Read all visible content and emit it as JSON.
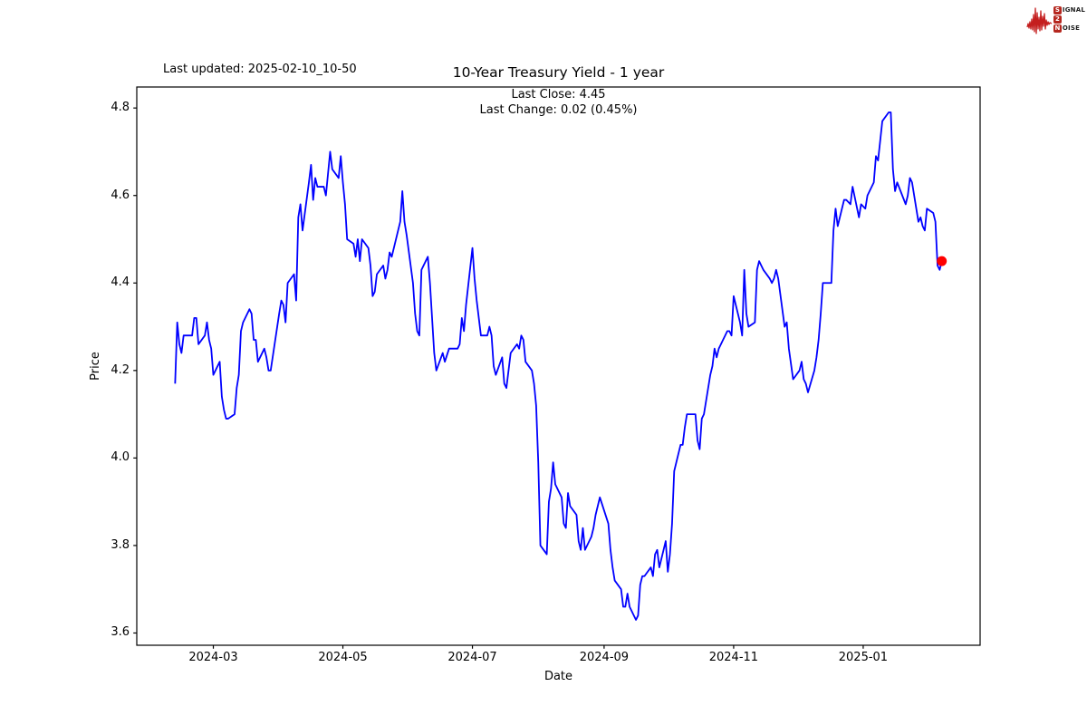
{
  "annotations": {
    "last_updated": "Last updated: 2025-02-10_10-50",
    "title": "10-Year Treasury Yield - 1 year",
    "last_close_line": "Last Close: 4.45",
    "last_change_line": "Last Change: 0.02 (0.45%)"
  },
  "logo": {
    "name": "Signal 2 Noise",
    "word1_initial": "S",
    "word1_rest": "IGNAL",
    "word2": "2",
    "word3_initial": "N",
    "word3_rest": "OISE",
    "box_color": "#b5271f",
    "wave_color": "#c41e1e"
  },
  "axes": {
    "x_label": "Date",
    "y_label": "Price",
    "x_ticks": [
      {
        "label": "2024-03",
        "date": "2024-03-01"
      },
      {
        "label": "2024-05",
        "date": "2024-05-01"
      },
      {
        "label": "2024-07",
        "date": "2024-07-01"
      },
      {
        "label": "2024-09",
        "date": "2024-09-01"
      },
      {
        "label": "2024-11",
        "date": "2024-11-01"
      },
      {
        "label": "2025-01",
        "date": "2025-01-01"
      }
    ],
    "y_ticks": [
      3.6,
      3.8,
      4.0,
      4.2,
      4.4,
      4.6,
      4.8
    ]
  },
  "chart_data": {
    "type": "line",
    "title": "10-Year Treasury Yield - 1 year",
    "xlabel": "Date",
    "ylabel": "Price",
    "legend": "none",
    "grid": false,
    "line_color": "#0000ff",
    "line_width": 1.8,
    "marker_color": "#ff0000",
    "last_close": 4.45,
    "last_change": "0.02 (0.45%)",
    "ylim": [
      3.57,
      4.85
    ],
    "xlim": [
      "2024-01-25",
      "2025-02-25"
    ],
    "points": [
      [
        "2024-02-12",
        4.17
      ],
      [
        "2024-02-13",
        4.31
      ],
      [
        "2024-02-14",
        4.26
      ],
      [
        "2024-02-15",
        4.24
      ],
      [
        "2024-02-16",
        4.28
      ],
      [
        "2024-02-20",
        4.28
      ],
      [
        "2024-02-21",
        4.32
      ],
      [
        "2024-02-22",
        4.32
      ],
      [
        "2024-02-23",
        4.26
      ],
      [
        "2024-02-26",
        4.28
      ],
      [
        "2024-02-27",
        4.31
      ],
      [
        "2024-02-28",
        4.27
      ],
      [
        "2024-02-29",
        4.25
      ],
      [
        "2024-03-01",
        4.19
      ],
      [
        "2024-03-04",
        4.22
      ],
      [
        "2024-03-05",
        4.14
      ],
      [
        "2024-03-06",
        4.11
      ],
      [
        "2024-03-07",
        4.09
      ],
      [
        "2024-03-08",
        4.09
      ],
      [
        "2024-03-11",
        4.1
      ],
      [
        "2024-03-12",
        4.16
      ],
      [
        "2024-03-13",
        4.19
      ],
      [
        "2024-03-14",
        4.29
      ],
      [
        "2024-03-15",
        4.31
      ],
      [
        "2024-03-18",
        4.34
      ],
      [
        "2024-03-19",
        4.33
      ],
      [
        "2024-03-20",
        4.27
      ],
      [
        "2024-03-21",
        4.27
      ],
      [
        "2024-03-22",
        4.22
      ],
      [
        "2024-03-25",
        4.25
      ],
      [
        "2024-03-26",
        4.23
      ],
      [
        "2024-03-27",
        4.2
      ],
      [
        "2024-03-28",
        4.2
      ],
      [
        "2024-04-01",
        4.33
      ],
      [
        "2024-04-02",
        4.36
      ],
      [
        "2024-04-03",
        4.35
      ],
      [
        "2024-04-04",
        4.31
      ],
      [
        "2024-04-05",
        4.4
      ],
      [
        "2024-04-08",
        4.42
      ],
      [
        "2024-04-09",
        4.36
      ],
      [
        "2024-04-10",
        4.55
      ],
      [
        "2024-04-11",
        4.58
      ],
      [
        "2024-04-12",
        4.52
      ],
      [
        "2024-04-15",
        4.63
      ],
      [
        "2024-04-16",
        4.67
      ],
      [
        "2024-04-17",
        4.59
      ],
      [
        "2024-04-18",
        4.64
      ],
      [
        "2024-04-19",
        4.62
      ],
      [
        "2024-04-22",
        4.62
      ],
      [
        "2024-04-23",
        4.6
      ],
      [
        "2024-04-24",
        4.65
      ],
      [
        "2024-04-25",
        4.7
      ],
      [
        "2024-04-26",
        4.66
      ],
      [
        "2024-04-29",
        4.64
      ],
      [
        "2024-04-30",
        4.69
      ],
      [
        "2024-05-01",
        4.63
      ],
      [
        "2024-05-02",
        4.58
      ],
      [
        "2024-05-03",
        4.5
      ],
      [
        "2024-05-06",
        4.49
      ],
      [
        "2024-05-07",
        4.46
      ],
      [
        "2024-05-08",
        4.5
      ],
      [
        "2024-05-09",
        4.45
      ],
      [
        "2024-05-10",
        4.5
      ],
      [
        "2024-05-13",
        4.48
      ],
      [
        "2024-05-14",
        4.44
      ],
      [
        "2024-05-15",
        4.37
      ],
      [
        "2024-05-16",
        4.38
      ],
      [
        "2024-05-17",
        4.42
      ],
      [
        "2024-05-20",
        4.44
      ],
      [
        "2024-05-21",
        4.41
      ],
      [
        "2024-05-22",
        4.43
      ],
      [
        "2024-05-23",
        4.47
      ],
      [
        "2024-05-24",
        4.46
      ],
      [
        "2024-05-28",
        4.54
      ],
      [
        "2024-05-29",
        4.61
      ],
      [
        "2024-05-30",
        4.54
      ],
      [
        "2024-05-31",
        4.51
      ],
      [
        "2024-06-03",
        4.4
      ],
      [
        "2024-06-04",
        4.33
      ],
      [
        "2024-06-05",
        4.29
      ],
      [
        "2024-06-06",
        4.28
      ],
      [
        "2024-06-07",
        4.43
      ],
      [
        "2024-06-10",
        4.46
      ],
      [
        "2024-06-11",
        4.4
      ],
      [
        "2024-06-12",
        4.32
      ],
      [
        "2024-06-13",
        4.24
      ],
      [
        "2024-06-14",
        4.2
      ],
      [
        "2024-06-17",
        4.24
      ],
      [
        "2024-06-18",
        4.22
      ],
      [
        "2024-06-20",
        4.25
      ],
      [
        "2024-06-21",
        4.25
      ],
      [
        "2024-06-24",
        4.25
      ],
      [
        "2024-06-25",
        4.26
      ],
      [
        "2024-06-26",
        4.32
      ],
      [
        "2024-06-27",
        4.29
      ],
      [
        "2024-06-28",
        4.35
      ],
      [
        "2024-07-01",
        4.48
      ],
      [
        "2024-07-02",
        4.41
      ],
      [
        "2024-07-03",
        4.36
      ],
      [
        "2024-07-05",
        4.28
      ],
      [
        "2024-07-08",
        4.28
      ],
      [
        "2024-07-09",
        4.3
      ],
      [
        "2024-07-10",
        4.28
      ],
      [
        "2024-07-11",
        4.21
      ],
      [
        "2024-07-12",
        4.19
      ],
      [
        "2024-07-15",
        4.23
      ],
      [
        "2024-07-16",
        4.17
      ],
      [
        "2024-07-17",
        4.16
      ],
      [
        "2024-07-18",
        4.2
      ],
      [
        "2024-07-19",
        4.24
      ],
      [
        "2024-07-22",
        4.26
      ],
      [
        "2024-07-23",
        4.25
      ],
      [
        "2024-07-24",
        4.28
      ],
      [
        "2024-07-25",
        4.27
      ],
      [
        "2024-07-26",
        4.22
      ],
      [
        "2024-07-29",
        4.2
      ],
      [
        "2024-07-30",
        4.17
      ],
      [
        "2024-07-31",
        4.12
      ],
      [
        "2024-08-01",
        3.99
      ],
      [
        "2024-08-02",
        3.8
      ],
      [
        "2024-08-05",
        3.78
      ],
      [
        "2024-08-06",
        3.9
      ],
      [
        "2024-08-07",
        3.93
      ],
      [
        "2024-08-08",
        3.99
      ],
      [
        "2024-08-09",
        3.94
      ],
      [
        "2024-08-12",
        3.91
      ],
      [
        "2024-08-13",
        3.85
      ],
      [
        "2024-08-14",
        3.84
      ],
      [
        "2024-08-15",
        3.92
      ],
      [
        "2024-08-16",
        3.89
      ],
      [
        "2024-08-19",
        3.87
      ],
      [
        "2024-08-20",
        3.81
      ],
      [
        "2024-08-21",
        3.79
      ],
      [
        "2024-08-22",
        3.84
      ],
      [
        "2024-08-23",
        3.79
      ],
      [
        "2024-08-26",
        3.82
      ],
      [
        "2024-08-27",
        3.84
      ],
      [
        "2024-08-28",
        3.87
      ],
      [
        "2024-08-29",
        3.89
      ],
      [
        "2024-08-30",
        3.91
      ],
      [
        "2024-09-03",
        3.85
      ],
      [
        "2024-09-04",
        3.79
      ],
      [
        "2024-09-05",
        3.75
      ],
      [
        "2024-09-06",
        3.72
      ],
      [
        "2024-09-09",
        3.7
      ],
      [
        "2024-09-10",
        3.66
      ],
      [
        "2024-09-11",
        3.66
      ],
      [
        "2024-09-12",
        3.69
      ],
      [
        "2024-09-13",
        3.66
      ],
      [
        "2024-09-16",
        3.63
      ],
      [
        "2024-09-17",
        3.64
      ],
      [
        "2024-09-18",
        3.71
      ],
      [
        "2024-09-19",
        3.73
      ],
      [
        "2024-09-20",
        3.73
      ],
      [
        "2024-09-23",
        3.75
      ],
      [
        "2024-09-24",
        3.73
      ],
      [
        "2024-09-25",
        3.78
      ],
      [
        "2024-09-26",
        3.79
      ],
      [
        "2024-09-27",
        3.75
      ],
      [
        "2024-09-30",
        3.81
      ],
      [
        "2024-10-01",
        3.74
      ],
      [
        "2024-10-02",
        3.78
      ],
      [
        "2024-10-03",
        3.85
      ],
      [
        "2024-10-04",
        3.97
      ],
      [
        "2024-10-07",
        4.03
      ],
      [
        "2024-10-08",
        4.03
      ],
      [
        "2024-10-09",
        4.07
      ],
      [
        "2024-10-10",
        4.1
      ],
      [
        "2024-10-11",
        4.1
      ],
      [
        "2024-10-14",
        4.1
      ],
      [
        "2024-10-15",
        4.04
      ],
      [
        "2024-10-16",
        4.02
      ],
      [
        "2024-10-17",
        4.09
      ],
      [
        "2024-10-18",
        4.1
      ],
      [
        "2024-10-21",
        4.19
      ],
      [
        "2024-10-22",
        4.21
      ],
      [
        "2024-10-23",
        4.25
      ],
      [
        "2024-10-24",
        4.23
      ],
      [
        "2024-10-25",
        4.25
      ],
      [
        "2024-10-28",
        4.28
      ],
      [
        "2024-10-29",
        4.29
      ],
      [
        "2024-10-30",
        4.29
      ],
      [
        "2024-10-31",
        4.28
      ],
      [
        "2024-11-01",
        4.37
      ],
      [
        "2024-11-04",
        4.31
      ],
      [
        "2024-11-05",
        4.28
      ],
      [
        "2024-11-06",
        4.43
      ],
      [
        "2024-11-07",
        4.33
      ],
      [
        "2024-11-08",
        4.3
      ],
      [
        "2024-11-11",
        4.31
      ],
      [
        "2024-11-12",
        4.43
      ],
      [
        "2024-11-13",
        4.45
      ],
      [
        "2024-11-14",
        4.44
      ],
      [
        "2024-11-15",
        4.43
      ],
      [
        "2024-11-18",
        4.41
      ],
      [
        "2024-11-19",
        4.4
      ],
      [
        "2024-11-20",
        4.41
      ],
      [
        "2024-11-21",
        4.43
      ],
      [
        "2024-11-22",
        4.41
      ],
      [
        "2024-11-25",
        4.3
      ],
      [
        "2024-11-26",
        4.31
      ],
      [
        "2024-11-27",
        4.25
      ],
      [
        "2024-11-29",
        4.18
      ],
      [
        "2024-12-02",
        4.2
      ],
      [
        "2024-12-03",
        4.22
      ],
      [
        "2024-12-04",
        4.18
      ],
      [
        "2024-12-05",
        4.17
      ],
      [
        "2024-12-06",
        4.15
      ],
      [
        "2024-12-09",
        4.2
      ],
      [
        "2024-12-10",
        4.23
      ],
      [
        "2024-12-11",
        4.27
      ],
      [
        "2024-12-12",
        4.33
      ],
      [
        "2024-12-13",
        4.4
      ],
      [
        "2024-12-16",
        4.4
      ],
      [
        "2024-12-17",
        4.4
      ],
      [
        "2024-12-18",
        4.52
      ],
      [
        "2024-12-19",
        4.57
      ],
      [
        "2024-12-20",
        4.53
      ],
      [
        "2024-12-23",
        4.59
      ],
      [
        "2024-12-24",
        4.59
      ],
      [
        "2024-12-26",
        4.58
      ],
      [
        "2024-12-27",
        4.62
      ],
      [
        "2024-12-30",
        4.55
      ],
      [
        "2024-12-31",
        4.58
      ],
      [
        "2025-01-02",
        4.57
      ],
      [
        "2025-01-03",
        4.6
      ],
      [
        "2025-01-06",
        4.63
      ],
      [
        "2025-01-07",
        4.69
      ],
      [
        "2025-01-08",
        4.68
      ],
      [
        "2025-01-10",
        4.77
      ],
      [
        "2025-01-13",
        4.79
      ],
      [
        "2025-01-14",
        4.79
      ],
      [
        "2025-01-15",
        4.66
      ],
      [
        "2025-01-16",
        4.61
      ],
      [
        "2025-01-17",
        4.63
      ],
      [
        "2025-01-21",
        4.58
      ],
      [
        "2025-01-22",
        4.6
      ],
      [
        "2025-01-23",
        4.64
      ],
      [
        "2025-01-24",
        4.63
      ],
      [
        "2025-01-27",
        4.54
      ],
      [
        "2025-01-28",
        4.55
      ],
      [
        "2025-01-29",
        4.53
      ],
      [
        "2025-01-30",
        4.52
      ],
      [
        "2025-01-31",
        4.57
      ],
      [
        "2025-02-03",
        4.56
      ],
      [
        "2025-02-04",
        4.54
      ],
      [
        "2025-02-05",
        4.44
      ],
      [
        "2025-02-06",
        4.43
      ],
      [
        "2025-02-07",
        4.45
      ]
    ]
  }
}
